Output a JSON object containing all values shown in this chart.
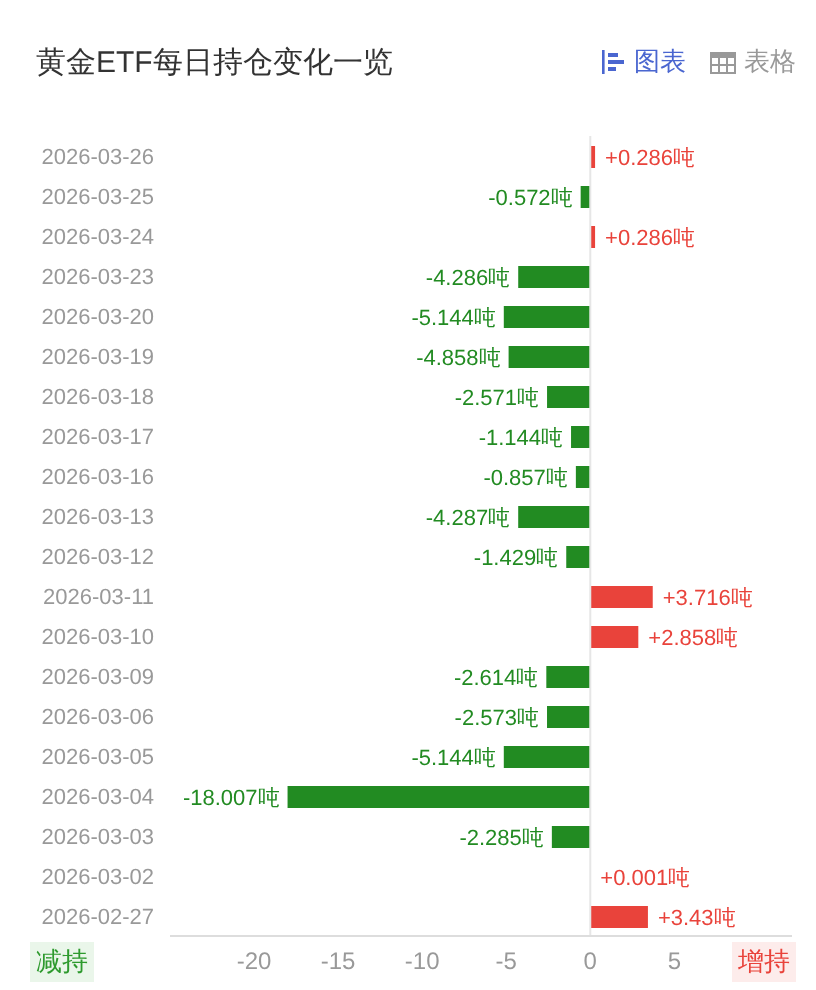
{
  "chart_data": {
    "type": "bar",
    "orientation": "horizontal",
    "title": "黄金ETF每日持仓变化一览",
    "categories": [
      "2026-03-26",
      "2026-03-25",
      "2026-03-24",
      "2026-03-23",
      "2026-03-20",
      "2026-03-19",
      "2026-03-18",
      "2026-03-17",
      "2026-03-16",
      "2026-03-13",
      "2026-03-12",
      "2026-03-11",
      "2026-03-10",
      "2026-03-09",
      "2026-03-06",
      "2026-03-05",
      "2026-03-04",
      "2026-03-03",
      "2026-03-02",
      "2026-02-27"
    ],
    "values": [
      0.286,
      -0.572,
      0.286,
      -4.286,
      -5.144,
      -4.858,
      -2.571,
      -1.144,
      -0.857,
      -4.287,
      -1.429,
      3.716,
      2.858,
      -2.614,
      -2.573,
      -5.144,
      -18.007,
      -2.285,
      0.001,
      3.43
    ],
    "colors": [
      "#e9433b",
      "#228b22",
      "#e9433b",
      "#228b22",
      "#228b22",
      "#228b22",
      "#228b22",
      "#228b22",
      "#228b22",
      "#228b22",
      "#228b22",
      "#e9433b",
      "#e9433b",
      "#228b22",
      "#228b22",
      "#228b22",
      "#228b22",
      "#228b22",
      "#e9433b",
      "#e9433b"
    ],
    "value_labels": [
      "+0.286吨",
      "-0.572吨",
      "+0.286吨",
      "-4.286吨",
      "-5.144吨",
      "-4.858吨",
      "-2.571吨",
      "-1.144吨",
      "-0.857吨",
      "-4.287吨",
      "-1.429吨",
      "+3.716吨",
      "+2.858吨",
      "-2.614吨",
      "-2.573吨",
      "-5.144吨",
      "-18.007吨",
      "-2.285吨",
      "+0.001吨",
      "+3.43吨"
    ],
    "xlim": [
      -25,
      12
    ],
    "xticks": [
      -20,
      -15,
      -10,
      -5,
      0,
      5
    ],
    "ref_lines": [
      {
        "axis": "x",
        "value": 0,
        "color": "#e6e6e6"
      }
    ],
    "annotations": [
      "减持",
      "增持",
      "图表",
      "表格"
    ]
  }
}
